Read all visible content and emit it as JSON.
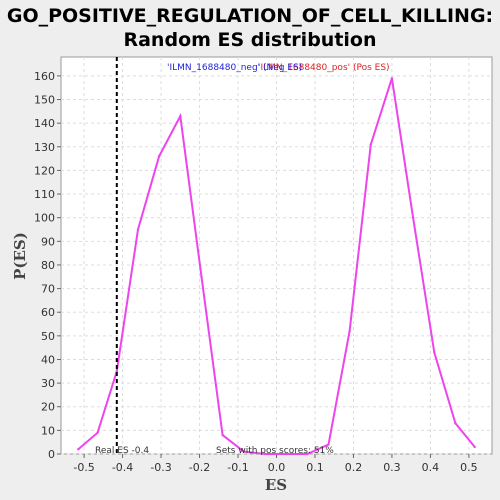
{
  "chart_data": {
    "type": "line",
    "title_line1": "GO_POSITIVE_REGULATION_OF_CELL_KILLING:",
    "title_line2": "Random ES distribution",
    "xlabel": "ES",
    "ylabel": "P(ES)",
    "xlim": [
      -0.56,
      0.56
    ],
    "ylim": [
      0,
      168
    ],
    "x_ticks": [
      -0.5,
      -0.4,
      -0.3,
      -0.2,
      -0.1,
      0.0,
      0.1,
      0.2,
      0.3,
      0.4,
      0.5
    ],
    "x_tick_labels": [
      "-0.5",
      "-0.4",
      "-0.3",
      "-0.2",
      "-0.1",
      "0.0",
      "0.1",
      "0.2",
      "0.3",
      "0.4",
      "0.5"
    ],
    "y_ticks": [
      0,
      10,
      20,
      30,
      40,
      50,
      60,
      70,
      80,
      90,
      100,
      110,
      120,
      130,
      140,
      150,
      160
    ],
    "y_tick_labels": [
      "0",
      "10",
      "20",
      "30",
      "40",
      "50",
      "60",
      "70",
      "80",
      "90",
      "100",
      "110",
      "120",
      "130",
      "140",
      "150",
      "160"
    ],
    "grid": true,
    "series": [
      {
        "color": "#ee44ee",
        "x": [
          -0.515,
          -0.465,
          -0.415,
          -0.36,
          -0.305,
          -0.25,
          -0.195,
          -0.14,
          -0.085,
          -0.03,
          0.025,
          0.08,
          0.135,
          0.19,
          0.245,
          0.3,
          0.355,
          0.41,
          0.465,
          0.515
        ],
        "y": [
          2,
          9,
          35,
          95,
          126,
          143,
          75,
          8,
          1,
          0,
          0,
          0,
          4,
          52,
          131,
          159,
          100,
          43,
          13,
          3
        ]
      }
    ],
    "real_es": {
      "value": -0.415,
      "color": "#000000"
    },
    "annotations": {
      "real_es_text": "Real ES -0.4",
      "pos_scores_text": "Sets with pos scores: 51%"
    },
    "legend": {
      "neg_text": "'ILMN_1688480_neg' (Neg ES)",
      "pos_text": "'ILMN_1688480_pos' (Pos ES)",
      "neg_color": "#2222dd",
      "pos_color": "#dd2222",
      "placement": "top"
    },
    "colors": {
      "plot_background": "#ffffff",
      "grid": "#dddddd",
      "page_background": "#eeeeee"
    }
  }
}
